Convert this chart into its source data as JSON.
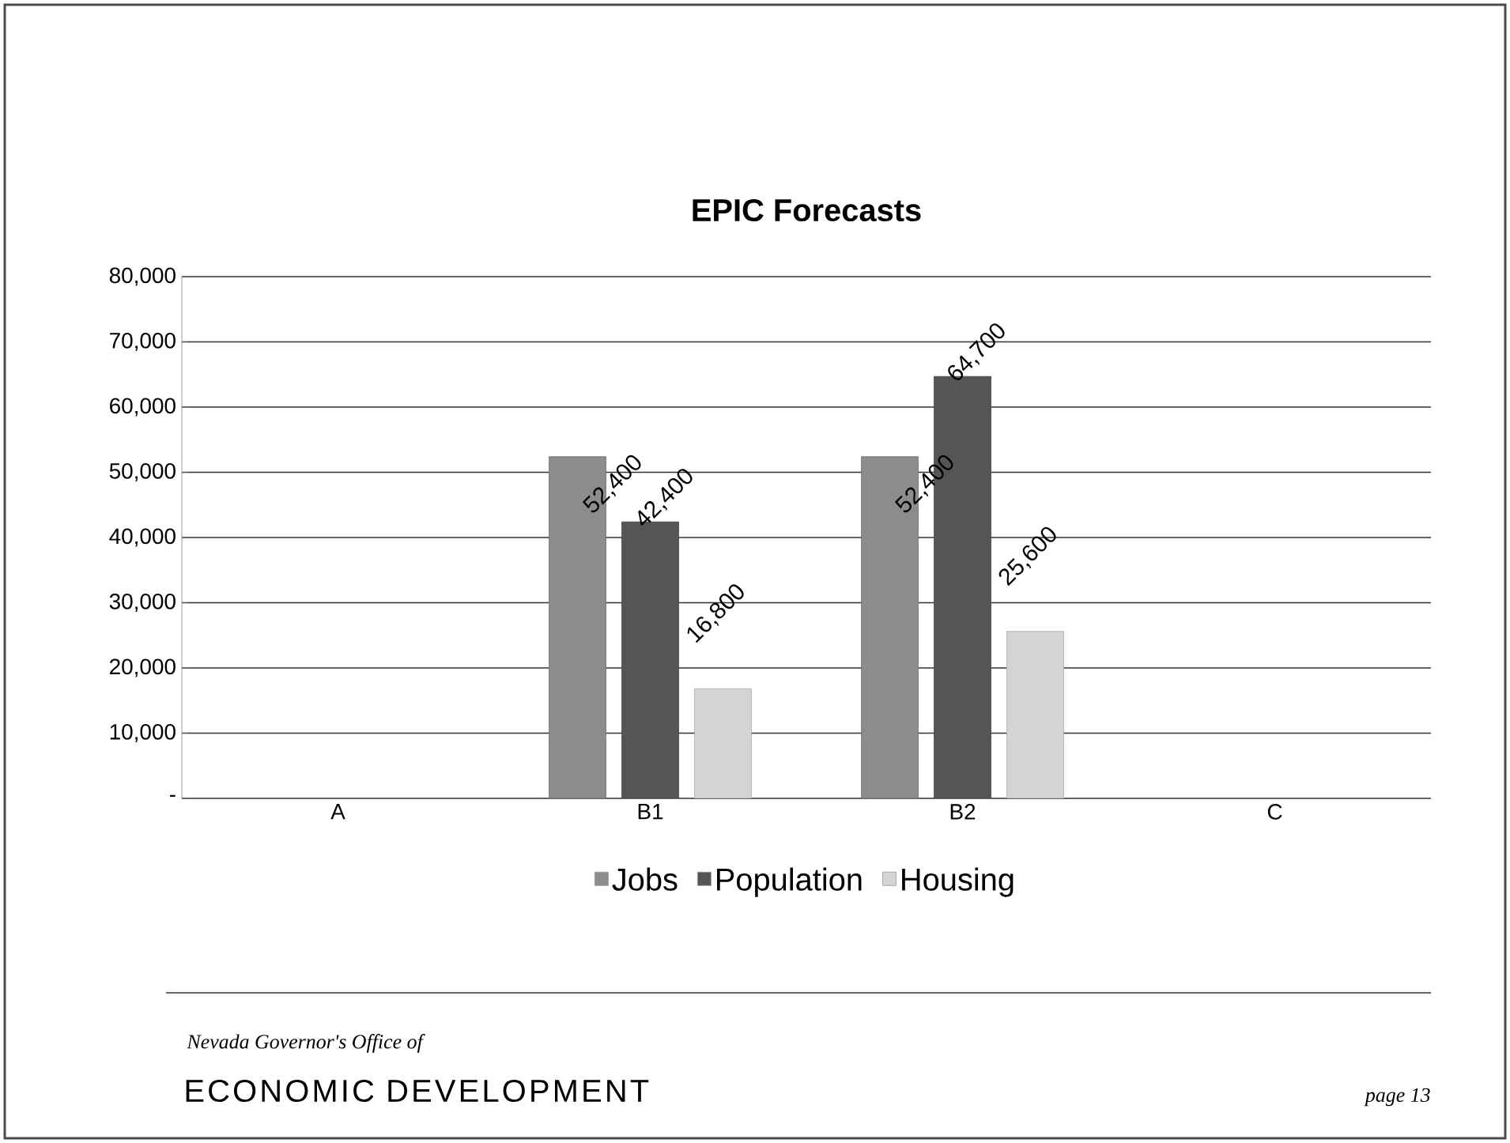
{
  "chart_data": {
    "type": "bar",
    "title": "EPIC Forecasts",
    "categories": [
      "A",
      "B1",
      "B2",
      "C"
    ],
    "series": [
      {
        "name": "Jobs",
        "color": "#8c8c8c",
        "values": [
          null,
          52400,
          52400,
          null
        ],
        "value_labels": [
          null,
          "52,400",
          "52,400",
          null
        ]
      },
      {
        "name": "Population",
        "color": "#555555",
        "values": [
          null,
          42400,
          64700,
          null
        ],
        "value_labels": [
          null,
          "42,400",
          "64,700",
          null
        ]
      },
      {
        "name": "Housing",
        "color": "#d4d4d4",
        "values": [
          null,
          16800,
          25600,
          null
        ],
        "value_labels": [
          null,
          "16,800",
          "25,600",
          null
        ]
      }
    ],
    "ylim": [
      0,
      80000
    ],
    "yticks": [
      {
        "value": 0,
        "label": "-"
      },
      {
        "value": 10000,
        "label": "10,000"
      },
      {
        "value": 20000,
        "label": "20,000"
      },
      {
        "value": 30000,
        "label": "30,000"
      },
      {
        "value": 40000,
        "label": "40,000"
      },
      {
        "value": 50000,
        "label": "50,000"
      },
      {
        "value": 60000,
        "label": "60,000"
      },
      {
        "value": 70000,
        "label": "70,000"
      },
      {
        "value": 80000,
        "label": "80,000"
      }
    ],
    "grid": "y",
    "legend": "bottom",
    "annotations": [
      "Nevada Governor's Office of",
      "ECONOMIC DEVELOPMENT",
      "page 13"
    ]
  }
}
